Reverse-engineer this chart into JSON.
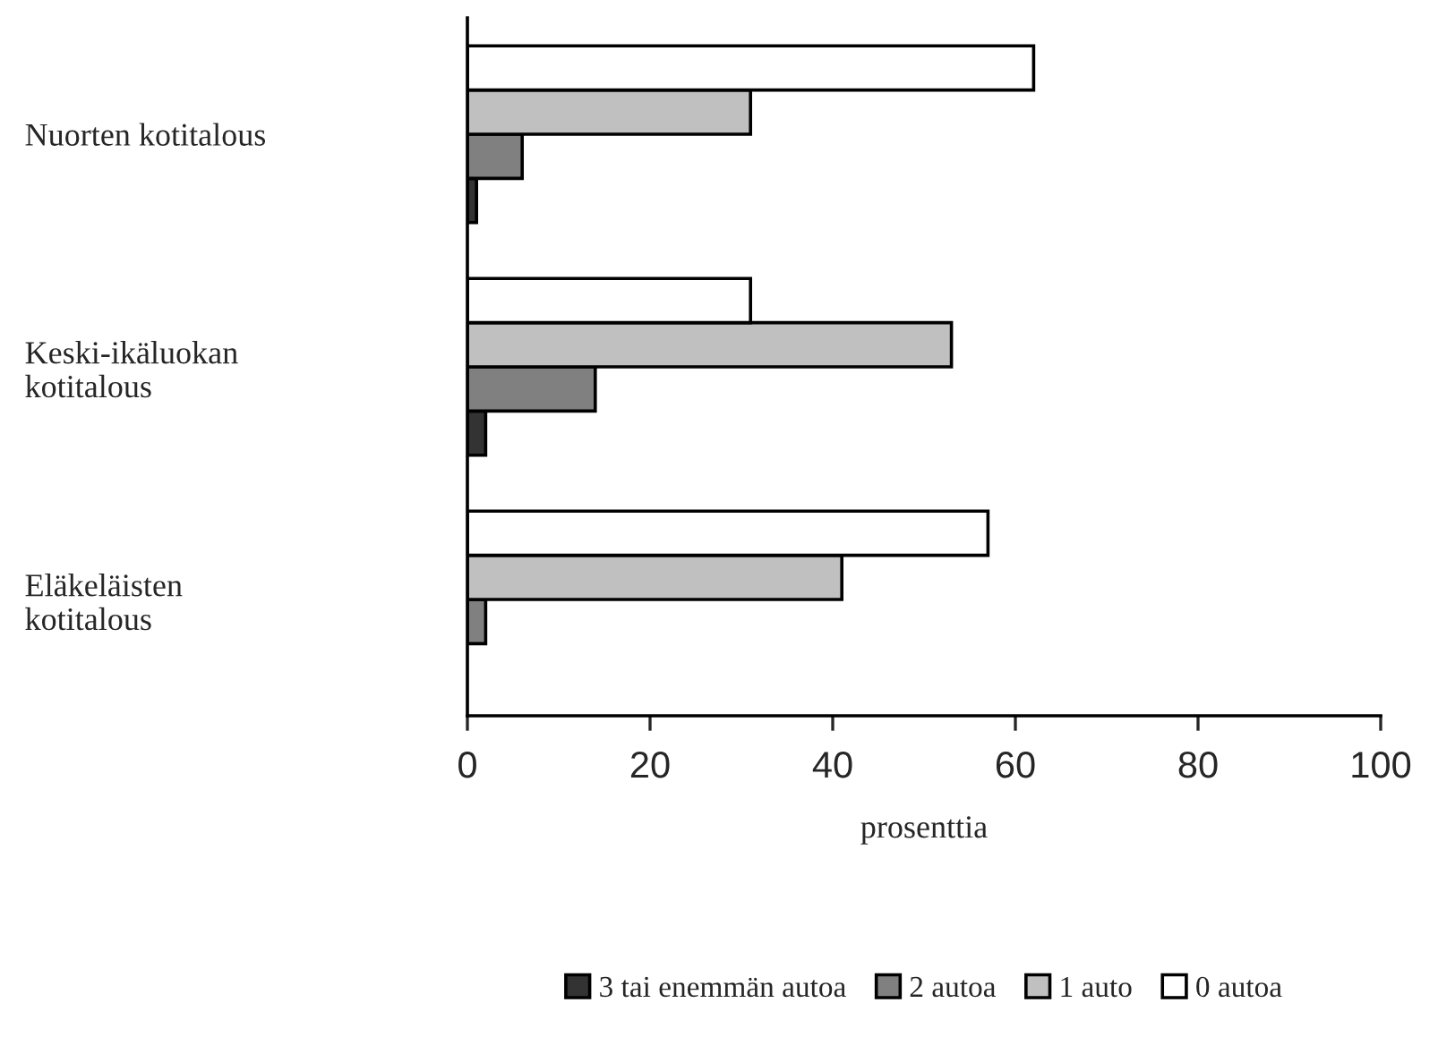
{
  "chart_data": {
    "type": "bar",
    "orientation": "horizontal",
    "xlabel": "prosenttia",
    "categories": [
      "Nuorten kotitalous",
      "Keski-ikäluokan\nkotitalous",
      "Eläkeläisten\nkotitalous"
    ],
    "series": [
      {
        "name": "3 tai enemmän autoa",
        "color": "#333333",
        "values": [
          1,
          2,
          null
        ]
      },
      {
        "name": "2 autoa",
        "color": "#808080",
        "values": [
          6,
          14,
          2
        ]
      },
      {
        "name": "1 auto",
        "color": "#c0c0c0",
        "values": [
          31,
          53,
          41
        ]
      },
      {
        "name": "0 autoa",
        "color": "#ffffff",
        "values": [
          62,
          31,
          57
        ]
      }
    ],
    "xlim": [
      0,
      100
    ],
    "xticks": [
      0,
      20,
      40,
      60,
      80,
      100
    ],
    "grid": false,
    "legend": "bottom"
  }
}
